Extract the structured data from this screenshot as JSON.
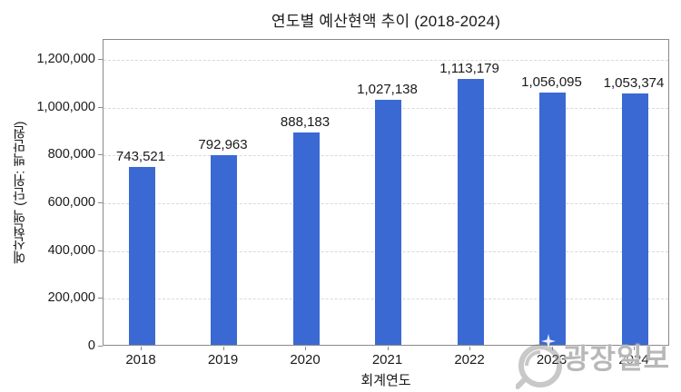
{
  "chart_data": {
    "type": "bar",
    "title": "연도별 예산현액 추이 (2018-2024)",
    "xlabel": "회계연도",
    "ylabel": "예산현액 (단위: 백만원)",
    "categories": [
      "2018",
      "2019",
      "2020",
      "2021",
      "2022",
      "2023",
      "2024"
    ],
    "values": [
      743521,
      792963,
      888183,
      1027138,
      1113179,
      1056095,
      1053374
    ],
    "value_labels": [
      "743,521",
      "792,963",
      "888,183",
      "1,027,138",
      "1,113,179",
      "1,056,095",
      "1,053,374"
    ],
    "ylim": [
      0,
      1200000
    ],
    "ytick_step": 200000,
    "ytick_labels": [
      "0",
      "200,000",
      "400,000",
      "600,000",
      "800,000",
      "1,000,000",
      "1,200,000"
    ],
    "grid": "horizontal-dashed",
    "legend": "none",
    "bar_color": "#3B69D3",
    "text_color": "#1a1a1a",
    "grid_color": "#d9d9d9",
    "spine_color": "#8a8a8a"
  },
  "watermark": {
    "text": "광장일보",
    "logo": "newspaper-ring-logo",
    "sparkle": "four-point-star",
    "color": "#7d7d7d"
  }
}
